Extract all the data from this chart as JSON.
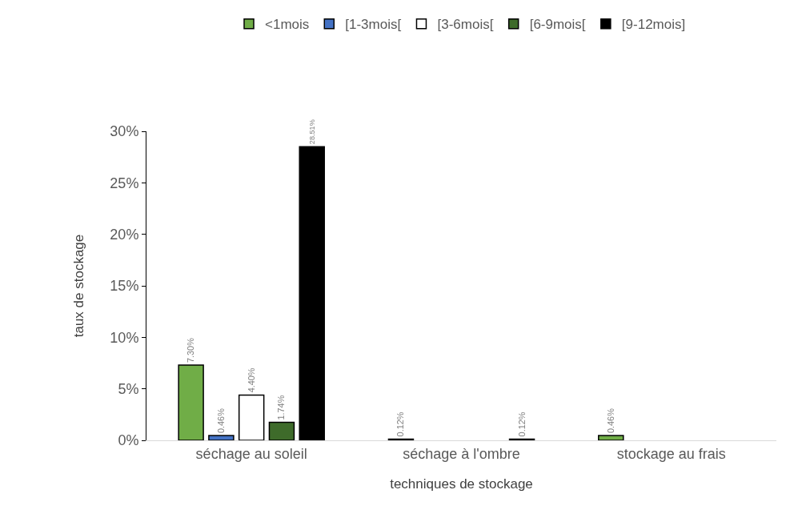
{
  "chart_data": {
    "type": "bar",
    "xlabel": "techniques de stockage",
    "ylabel": "taux de stockage",
    "categories": [
      "séchage au soleil",
      "séchage à l'ombre",
      "stockage au frais"
    ],
    "series": [
      {
        "name": "<1mois",
        "color": "#70ad47",
        "values": [
          7.3,
          0.12,
          0.46
        ],
        "value_labels": [
          "7.30%",
          "0.12%",
          "0.46%"
        ]
      },
      {
        "name": "[1-3mois[",
        "color": "#4472c4",
        "values": [
          0.46,
          null,
          null
        ],
        "value_labels": [
          "0.46%",
          null,
          null
        ]
      },
      {
        "name": "[3-6mois[",
        "color": "#ffffff",
        "values": [
          4.4,
          null,
          null
        ],
        "value_labels": [
          "4.40%",
          null,
          null
        ]
      },
      {
        "name": "[6-9mois[",
        "color": "#3e6b2a",
        "values": [
          1.74,
          null,
          null
        ],
        "value_labels": [
          "1.74%",
          null,
          null
        ]
      },
      {
        "name": "[9-12mois]",
        "color": "#000000",
        "values": [
          28.51,
          0.12,
          null
        ],
        "value_labels": [
          "28.51%",
          "0.12%",
          null
        ]
      }
    ],
    "ylim": [
      0,
      30
    ],
    "yticks": [
      {
        "value": 0,
        "label": "0%"
      },
      {
        "value": 5,
        "label": "5%"
      },
      {
        "value": 10,
        "label": "10%"
      },
      {
        "value": 15,
        "label": "15%"
      },
      {
        "value": 20,
        "label": "20%"
      },
      {
        "value": 25,
        "label": "25%"
      },
      {
        "value": 30,
        "label": "30%"
      }
    ],
    "grid": false,
    "legend": "top"
  }
}
